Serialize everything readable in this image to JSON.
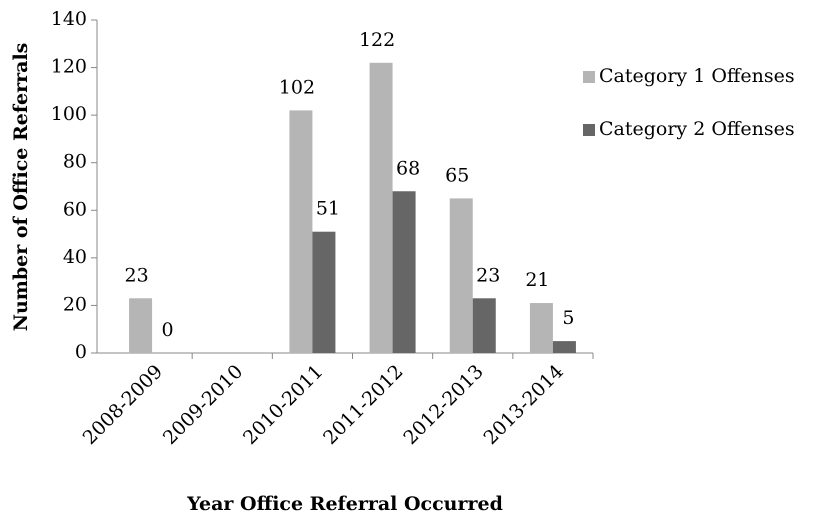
{
  "chart_data": {
    "type": "bar",
    "xlabel": "Year Office Referral Occurred",
    "ylabel": "Number of Office Referrals",
    "categories": [
      "2008-2009",
      "2009-2010",
      "2010-2011",
      "2011-2012",
      "2012-2013",
      "2013-2014"
    ],
    "series": [
      {
        "name": "Category 1 Offenses",
        "color": "#b5b5b5",
        "values": [
          23,
          null,
          102,
          122,
          65,
          21
        ]
      },
      {
        "name": "Category 2 Offenses",
        "color": "#666666",
        "values": [
          0,
          null,
          51,
          68,
          23,
          5
        ]
      }
    ],
    "ylim": [
      0,
      140
    ],
    "yticks": [
      0,
      20,
      40,
      60,
      80,
      100,
      120,
      140
    ],
    "legend": "right",
    "grid": false
  }
}
